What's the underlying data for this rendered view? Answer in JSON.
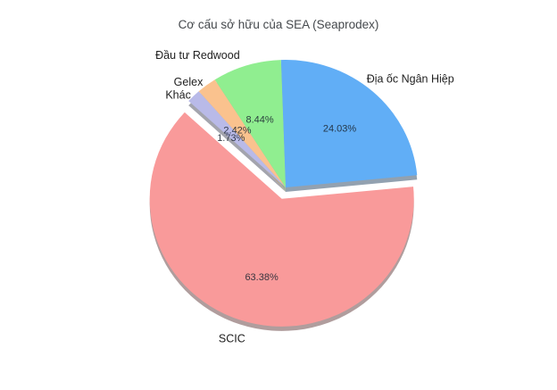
{
  "chart_data": {
    "type": "pie",
    "title": "Cơ cấu sở hữu của SEA (Seaprodex)",
    "is_3d": true,
    "start_angle_deg": 92,
    "direction": "clockwise",
    "background": "#ffffff",
    "legend": "labels-outside-slices",
    "slices": [
      {
        "label": "Địa ốc Ngân Hiệp",
        "value": 24.03,
        "display": "24.03%",
        "color": "#61aef6",
        "exploded": false
      },
      {
        "label": "SCIC",
        "value": 63.38,
        "display": "63.38%",
        "color": "#f99a9a",
        "exploded": true
      },
      {
        "label": "Khác",
        "value": 1.73,
        "display": "1.73%",
        "color": "#b9bae8",
        "exploded": false
      },
      {
        "label": "Gelex",
        "value": 2.42,
        "display": "2.42%",
        "color": "#fac28e",
        "exploded": false
      },
      {
        "label": "Đầu tư Redwood",
        "value": 8.44,
        "display": "8.44%",
        "color": "#90ee90",
        "exploded": false
      }
    ],
    "text_colors": {
      "title": "#45494d",
      "slice_names": "#1e1e1e",
      "pct_labels": "#1b2531"
    }
  }
}
